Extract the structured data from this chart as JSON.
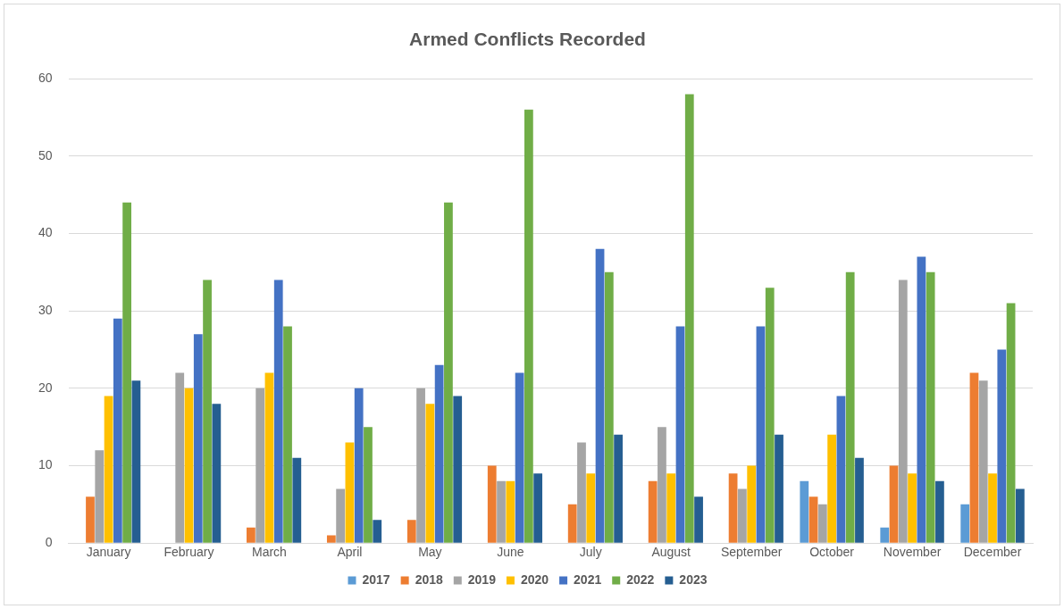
{
  "chart_data": {
    "type": "bar",
    "title": "Armed Conflicts Recorded",
    "categories": [
      "January",
      "February",
      "March",
      "April",
      "May",
      "June",
      "July",
      "August",
      "September",
      "October",
      "November",
      "December"
    ],
    "series": [
      {
        "name": "2017",
        "color": "#5b9bd5",
        "values": [
          0,
          0,
          0,
          0,
          0,
          0,
          0,
          0,
          0,
          8,
          2,
          5
        ]
      },
      {
        "name": "2018",
        "color": "#ed7d31",
        "values": [
          6,
          0,
          2,
          1,
          3,
          10,
          5,
          8,
          9,
          6,
          10,
          22
        ]
      },
      {
        "name": "2019",
        "color": "#a5a5a5",
        "values": [
          12,
          22,
          20,
          7,
          20,
          8,
          13,
          15,
          7,
          5,
          34,
          21
        ]
      },
      {
        "name": "2020",
        "color": "#ffc000",
        "values": [
          19,
          20,
          22,
          13,
          18,
          8,
          9,
          9,
          10,
          14,
          9,
          9
        ]
      },
      {
        "name": "2021",
        "color": "#4472c4",
        "values": [
          29,
          27,
          34,
          20,
          23,
          22,
          38,
          28,
          28,
          19,
          37,
          25
        ]
      },
      {
        "name": "2022",
        "color": "#70ad47",
        "values": [
          44,
          34,
          28,
          15,
          44,
          56,
          35,
          58,
          33,
          35,
          35,
          31
        ]
      },
      {
        "name": "2023",
        "color": "#255e91",
        "values": [
          21,
          18,
          11,
          3,
          19,
          9,
          14,
          6,
          14,
          11,
          8,
          7
        ]
      }
    ],
    "ylim": [
      0,
      60
    ],
    "yticks": [
      0,
      10,
      20,
      30,
      40,
      50,
      60
    ],
    "grid": "y",
    "legend": "bottom"
  }
}
